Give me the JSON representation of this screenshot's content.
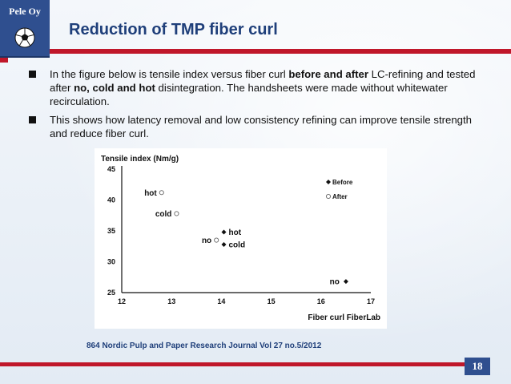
{
  "logo": {
    "text": "Pele Oy",
    "icon": "soccer-ball-icon"
  },
  "slide": {
    "title": "Reduction of TMP fiber curl",
    "page_number": "18"
  },
  "bullets": [
    {
      "parts": [
        "In the figure below is tensile index versus fiber curl ",
        "before and after",
        " LC-refining and tested after ",
        "no, cold and hot",
        " disintegration. The handsheets were made without whitewater recirculation."
      ]
    },
    {
      "parts": [
        "This shows how latency removal and low consistency refining can improve tensile strength and reduce fiber curl."
      ]
    }
  ],
  "source": "864 Nordic Pulp and Paper Research Journal Vol 27 no.5/2012",
  "colors": {
    "accent_red": "#c0172a",
    "brand_blue": "#2f4f8f",
    "title_blue": "#1f3f7a"
  },
  "chart_data": {
    "type": "scatter",
    "title": "Tensile index (Nm/g)",
    "xlabel": "Fiber curl FiberLab",
    "ylabel": "Tensile index (Nm/g)",
    "xlim": [
      12,
      17
    ],
    "ylim": [
      25,
      45
    ],
    "xticks": [
      "12",
      "13",
      "14",
      "15",
      "16",
      "17"
    ],
    "yticks": [
      "45",
      "40",
      "35",
      "30",
      "25"
    ],
    "legend": {
      "position": "top-right",
      "entries": [
        "Before",
        "After"
      ]
    },
    "series": [
      {
        "name": "Before",
        "marker": "filled-diamond",
        "points": [
          {
            "label": "hot",
            "x": 14.05,
            "y": 34.8
          },
          {
            "label": "cold",
            "x": 14.05,
            "y": 32.8
          },
          {
            "label": "no",
            "x": 16.5,
            "y": 26.8
          }
        ]
      },
      {
        "name": "After",
        "marker": "open-circle",
        "points": [
          {
            "label": "hot",
            "x": 12.8,
            "y": 41.2
          },
          {
            "label": "cold",
            "x": 13.1,
            "y": 37.8
          },
          {
            "label": "no",
            "x": 13.9,
            "y": 33.5
          }
        ]
      }
    ]
  }
}
